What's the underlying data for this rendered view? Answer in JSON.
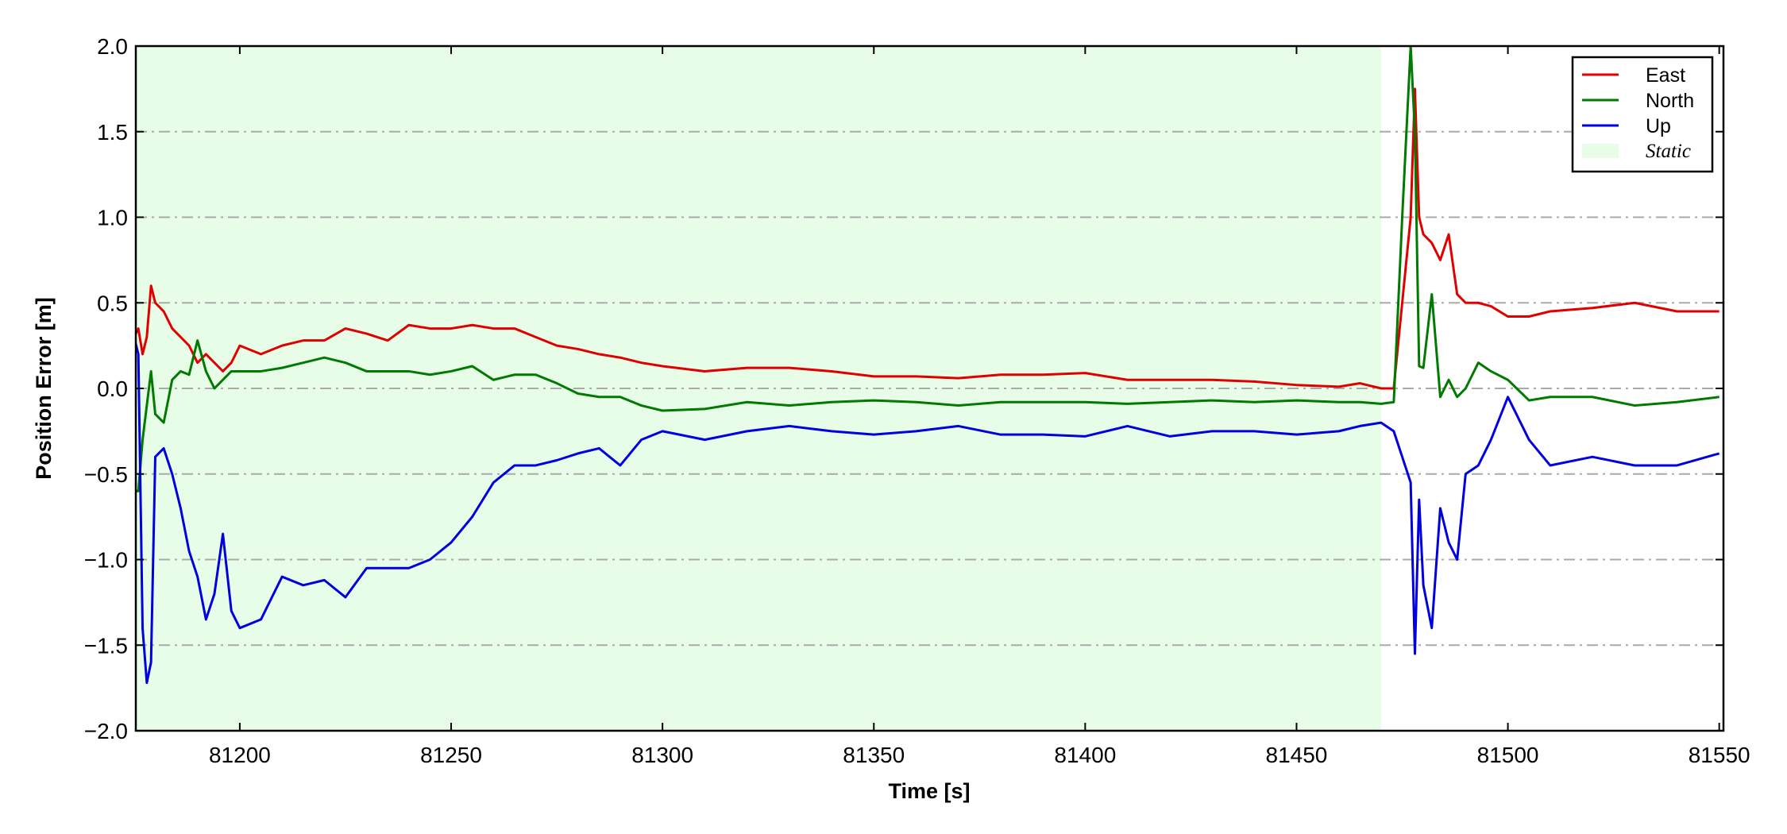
{
  "chart_data": {
    "type": "line",
    "xlabel": "Time [s]",
    "ylabel": "Position Error [m]",
    "xlim": [
      81175.4,
      81551
    ],
    "ylim": [
      -2,
      2
    ],
    "xticks": [
      81200,
      81250,
      81300,
      81350,
      81400,
      81450,
      81500,
      81550
    ],
    "yticks": [
      {
        "value": -2,
        "label": "−2.0"
      },
      {
        "value": -1.5,
        "label": "−1.5"
      },
      {
        "value": -1,
        "label": "−1.0"
      },
      {
        "value": -0.5,
        "label": "−0.5"
      },
      {
        "value": 0,
        "label": "0.0"
      },
      0.5,
      {
        "value": 1,
        "label": "1.0"
      },
      1.5,
      {
        "value": 2,
        "label": "2.0"
      }
    ],
    "grid": true,
    "legend": "upper right",
    "static_span": {
      "name": "Static",
      "color": "#e8fde8",
      "x": [
        81175.4,
        81470
      ]
    },
    "x": [
      81175,
      81176,
      81177,
      81178,
      81179,
      81180,
      81182,
      81184,
      81186,
      81188,
      81190,
      81192,
      81194,
      81196,
      81198,
      81200,
      81205,
      81210,
      81215,
      81220,
      81225,
      81230,
      81235,
      81240,
      81245,
      81250,
      81255,
      81260,
      81265,
      81270,
      81275,
      81280,
      81285,
      81290,
      81295,
      81300,
      81310,
      81320,
      81330,
      81340,
      81350,
      81360,
      81370,
      81380,
      81390,
      81400,
      81410,
      81420,
      81430,
      81440,
      81450,
      81460,
      81465,
      81470,
      81473,
      81475,
      81477,
      81478,
      81479,
      81480,
      81482,
      81484,
      81486,
      81488,
      81490,
      81493,
      81496,
      81500,
      81505,
      81510,
      81520,
      81530,
      81540,
      81550
    ],
    "series": [
      {
        "name": "East",
        "color": "#e00000",
        "values": [
          0.3,
          0.35,
          0.2,
          0.3,
          0.6,
          0.5,
          0.45,
          0.35,
          0.3,
          0.25,
          0.15,
          0.2,
          0.15,
          0.1,
          0.15,
          0.25,
          0.2,
          0.25,
          0.28,
          0.28,
          0.35,
          0.32,
          0.28,
          0.37,
          0.35,
          0.35,
          0.37,
          0.35,
          0.35,
          0.3,
          0.25,
          0.23,
          0.2,
          0.18,
          0.15,
          0.13,
          0.1,
          0.12,
          0.12,
          0.1,
          0.07,
          0.07,
          0.06,
          0.08,
          0.08,
          0.09,
          0.05,
          0.05,
          0.05,
          0.04,
          0.02,
          0.01,
          0.03,
          0.0,
          0.0,
          0.5,
          1.0,
          1.75,
          1.0,
          0.9,
          0.85,
          0.75,
          0.9,
          0.55,
          0.5,
          0.5,
          0.48,
          0.42,
          0.42,
          0.45,
          0.47,
          0.5,
          0.45,
          0.45
        ]
      },
      {
        "name": "North",
        "color": "#007a00",
        "values": [
          -0.6,
          -0.6,
          -0.3,
          -0.1,
          0.1,
          -0.15,
          -0.2,
          0.05,
          0.1,
          0.08,
          0.28,
          0.1,
          0.0,
          0.05,
          0.1,
          0.1,
          0.1,
          0.12,
          0.15,
          0.18,
          0.15,
          0.1,
          0.1,
          0.1,
          0.08,
          0.1,
          0.13,
          0.05,
          0.08,
          0.08,
          0.03,
          -0.03,
          -0.05,
          -0.05,
          -0.1,
          -0.13,
          -0.12,
          -0.08,
          -0.1,
          -0.08,
          -0.07,
          -0.08,
          -0.1,
          -0.08,
          -0.08,
          -0.08,
          -0.09,
          -0.08,
          -0.07,
          -0.08,
          -0.07,
          -0.08,
          -0.08,
          -0.09,
          -0.08,
          1.0,
          2.0,
          1.5,
          0.13,
          0.12,
          0.55,
          -0.05,
          0.05,
          -0.05,
          0.0,
          0.15,
          0.1,
          0.05,
          -0.07,
          -0.05,
          -0.05,
          -0.1,
          -0.08,
          -0.05
        ]
      },
      {
        "name": "Up",
        "color": "#0000e0",
        "values": [
          0.3,
          0.2,
          -1.4,
          -1.72,
          -1.6,
          -0.4,
          -0.35,
          -0.5,
          -0.7,
          -0.95,
          -1.1,
          -1.35,
          -1.2,
          -0.85,
          -1.3,
          -1.4,
          -1.35,
          -1.1,
          -1.15,
          -1.12,
          -1.22,
          -1.05,
          -1.05,
          -1.05,
          -1.0,
          -0.9,
          -0.75,
          -0.55,
          -0.45,
          -0.45,
          -0.42,
          -0.38,
          -0.35,
          -0.45,
          -0.3,
          -0.25,
          -0.3,
          -0.25,
          -0.22,
          -0.25,
          -0.27,
          -0.25,
          -0.22,
          -0.27,
          -0.27,
          -0.28,
          -0.22,
          -0.28,
          -0.25,
          -0.25,
          -0.27,
          -0.25,
          -0.22,
          -0.2,
          -0.25,
          -0.4,
          -0.55,
          -1.55,
          -0.65,
          -1.15,
          -1.4,
          -0.7,
          -0.9,
          -1.0,
          -0.5,
          -0.45,
          -0.3,
          -0.05,
          -0.3,
          -0.45,
          -0.4,
          -0.45,
          -0.45,
          -0.38
        ]
      }
    ]
  }
}
